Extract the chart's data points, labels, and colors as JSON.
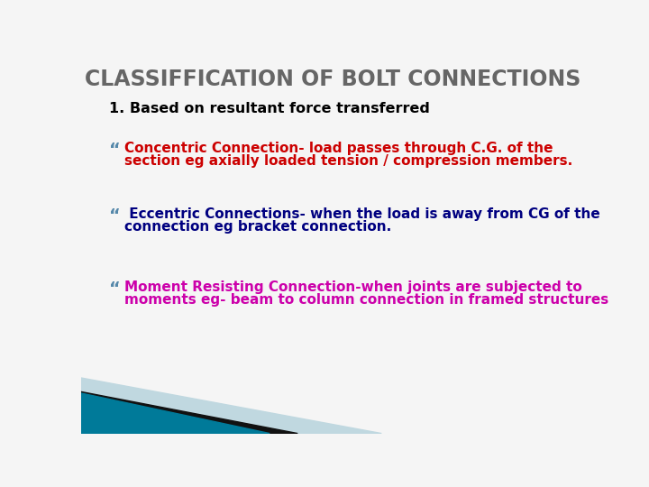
{
  "title": "CLASSIFFICATION OF BOLT CONNECTIONS",
  "title_color": "#666666",
  "title_fontsize": 17,
  "bg_color": "#f5f5f5",
  "subtitle": "1. Based on resultant force transferred",
  "subtitle_color": "#000000",
  "subtitle_fontsize": 11.5,
  "bullet_char": "“",
  "bullet_color": "#5588aa",
  "bullet_fontsize": 14,
  "bullets": [
    {
      "line1": "Concentric Connection- load passes through C.G. of the",
      "line2": "section eg axially loaded tension / compression members.",
      "color": "#cc0000",
      "fontsize": 11
    },
    {
      "line1": " Eccentric Connections- when the load is away from CG of the",
      "line2": "connection eg bracket connection.",
      "color": "#000080",
      "fontsize": 11
    },
    {
      "line1": "Moment Resisting Connection-when joints are subjected to",
      "line2": "moments eg- beam to column connection in framed structures",
      "color": "#cc00aa",
      "fontsize": 11
    }
  ],
  "bottom_teal_color": "#007a99",
  "bottom_black_color": "#111111",
  "bottom_lightblue_color": "#c0d8e0"
}
